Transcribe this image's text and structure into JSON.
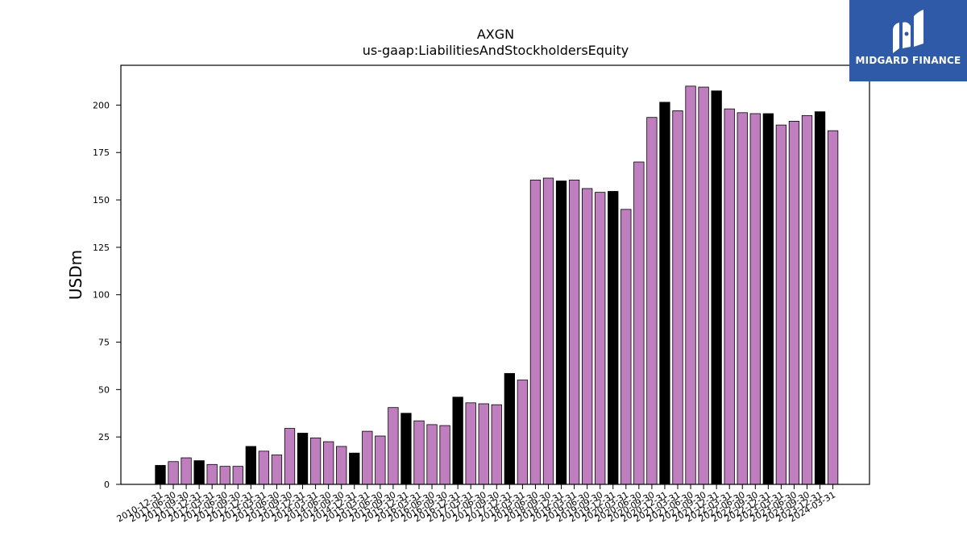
{
  "chart_data": {
    "type": "bar",
    "title": "AXGN",
    "subtitle": "us-gaap:LiabilitiesAndStockholdersEquity",
    "xlabel": "",
    "ylabel": "USDm",
    "ylim": [
      0,
      221
    ],
    "yticks": [
      0,
      25,
      50,
      75,
      100,
      125,
      150,
      175,
      200
    ],
    "categories": [
      "2010-12-31",
      "2011-06-30",
      "2011-09-30",
      "2011-12-31",
      "2012-03-31",
      "2012-06-30",
      "2012-09-30",
      "2012-12-31",
      "2013-03-31",
      "2013-06-30",
      "2013-09-30",
      "2013-12-31",
      "2014-03-31",
      "2014-06-30",
      "2014-09-30",
      "2014-12-31",
      "2015-03-31",
      "2015-06-30",
      "2015-09-30",
      "2015-12-31",
      "2016-03-31",
      "2016-06-30",
      "2016-09-30",
      "2016-12-31",
      "2017-03-31",
      "2017-06-30",
      "2017-09-30",
      "2017-12-31",
      "2018-03-31",
      "2018-06-30",
      "2018-09-30",
      "2018-12-31",
      "2019-03-31",
      "2019-06-30",
      "2019-09-30",
      "2019-12-31",
      "2020-03-31",
      "2020-06-30",
      "2020-09-30",
      "2020-12-31",
      "2021-03-31",
      "2021-06-30",
      "2021-09-30",
      "2021-12-31",
      "2022-03-31",
      "2022-06-30",
      "2022-09-30",
      "2022-12-31",
      "2023-03-31",
      "2023-06-30",
      "2023-09-30",
      "2023-12-31",
      "2024-03-31"
    ],
    "values": [
      10,
      12,
      14,
      12.5,
      10.5,
      9.5,
      9.5,
      20,
      17.5,
      15.5,
      29.5,
      27,
      24.5,
      22.5,
      20,
      16.5,
      28,
      25.5,
      40.5,
      37.5,
      33.5,
      31.5,
      31,
      46,
      43,
      42.5,
      42,
      58.5,
      55,
      160.5,
      161.5,
      160,
      160.5,
      156,
      154,
      154.5,
      145,
      170,
      193.5,
      201.5,
      197,
      210,
      209.5,
      207.5,
      198,
      196,
      195.5,
      195.5,
      189.5,
      191.5,
      194.5,
      196.5,
      186.5
    ],
    "highlight": [
      true,
      false,
      false,
      true,
      false,
      false,
      false,
      true,
      false,
      false,
      false,
      true,
      false,
      false,
      false,
      true,
      false,
      false,
      false,
      true,
      false,
      false,
      false,
      true,
      false,
      false,
      false,
      true,
      false,
      false,
      false,
      true,
      false,
      false,
      false,
      true,
      false,
      false,
      false,
      true,
      false,
      false,
      false,
      true,
      false,
      false,
      false,
      true,
      false,
      false,
      false,
      true,
      false
    ],
    "colors": {
      "bar": "#bf7fbf",
      "highlight": "#000000",
      "edge": "#000000"
    },
    "grid": false,
    "legend": "none"
  },
  "logo": {
    "text": "MIDGARD FINANCE",
    "background": "#2f5aa8"
  }
}
